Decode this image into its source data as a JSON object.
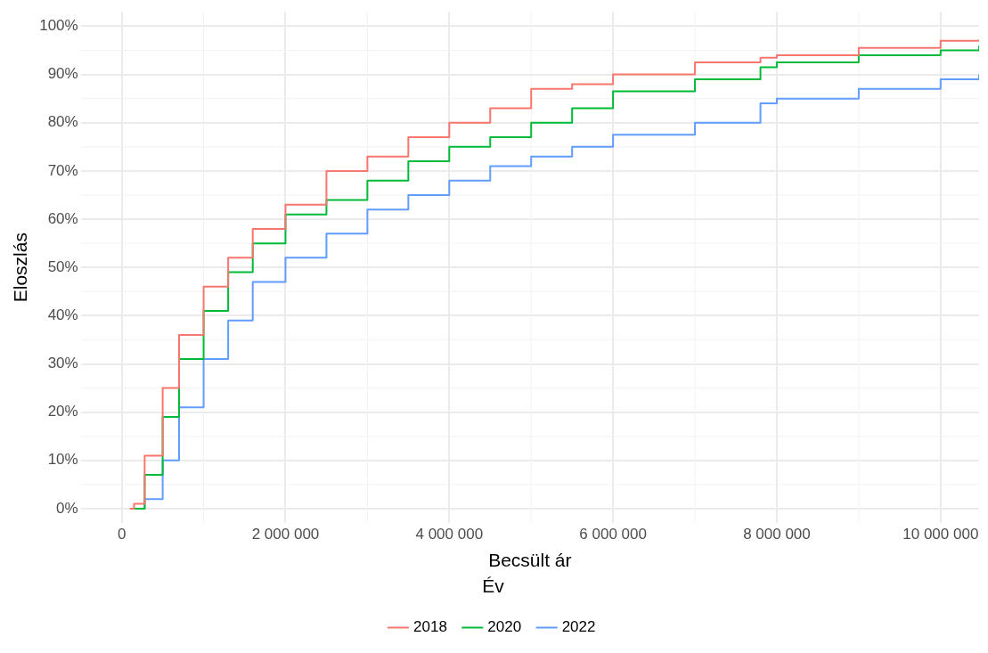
{
  "chart_data": {
    "type": "step",
    "xlabel": "Becsült ár",
    "ylabel": "Eloszlás",
    "legend_title": "Év",
    "legend": "bottom",
    "grid": true,
    "marker": "none",
    "line_style": "solid",
    "xlim": [
      -500000,
      10470000
    ],
    "ylim": [
      -3,
      103
    ],
    "xticks": [
      0,
      {
        "value": 2000000,
        "label": "2 000 000"
      },
      {
        "value": 4000000,
        "label": "4 000 000"
      },
      {
        "value": 6000000,
        "label": "6 000 000"
      },
      {
        "value": 8000000,
        "label": "8 000 000"
      },
      {
        "value": 10000000,
        "label": "10 000 000"
      }
    ],
    "yticks": [
      {
        "value": 0,
        "label": "0%"
      },
      {
        "value": 10,
        "label": "10%"
      },
      {
        "value": 20,
        "label": "20%"
      },
      {
        "value": 30,
        "label": "30%"
      },
      {
        "value": 40,
        "label": "40%"
      },
      {
        "value": 50,
        "label": "50%"
      },
      {
        "value": 60,
        "label": "60%"
      },
      {
        "value": 70,
        "label": "70%"
      },
      {
        "value": 80,
        "label": "80%"
      },
      {
        "value": 90,
        "label": "90%"
      },
      {
        "value": 100,
        "label": "100%"
      }
    ],
    "x": [
      100000,
      150000,
      280000,
      500000,
      700000,
      1000000,
      1300000,
      1600000,
      2000000,
      2500000,
      3000000,
      3500000,
      4000000,
      4500000,
      5000000,
      5500000,
      6000000,
      7000000,
      7800000,
      8000000,
      9000000,
      10000000,
      10470000
    ],
    "series": [
      {
        "name": "2018",
        "color": "#f8766d",
        "values": [
          0,
          1,
          11,
          25,
          36,
          46,
          52,
          58,
          63,
          70,
          73,
          77,
          80,
          83,
          87,
          88,
          90,
          92.5,
          93.5,
          94,
          95.5,
          97,
          97.2
        ]
      },
      {
        "name": "2020",
        "color": "#00ba38",
        "x": [
          100000,
          280000,
          500000,
          700000,
          1000000,
          1300000,
          1600000,
          2000000,
          2500000,
          3000000,
          3500000,
          4000000,
          4500000,
          5000000,
          5500000,
          6000000,
          7000000,
          7800000,
          8000000,
          9000000,
          10000000,
          10470000
        ],
        "values": [
          0,
          7,
          19,
          31,
          41,
          49,
          55,
          61,
          64,
          68,
          72,
          75,
          77,
          80,
          83,
          86.5,
          89,
          91.5,
          92.5,
          94,
          95,
          96
        ]
      },
      {
        "name": "2022",
        "color": "#619cff",
        "values": [
          null,
          0,
          2,
          10,
          21,
          31,
          39,
          47,
          52,
          57,
          62,
          65,
          68,
          71,
          73,
          75,
          77.5,
          80,
          84,
          85,
          87,
          89,
          90
        ]
      }
    ]
  }
}
